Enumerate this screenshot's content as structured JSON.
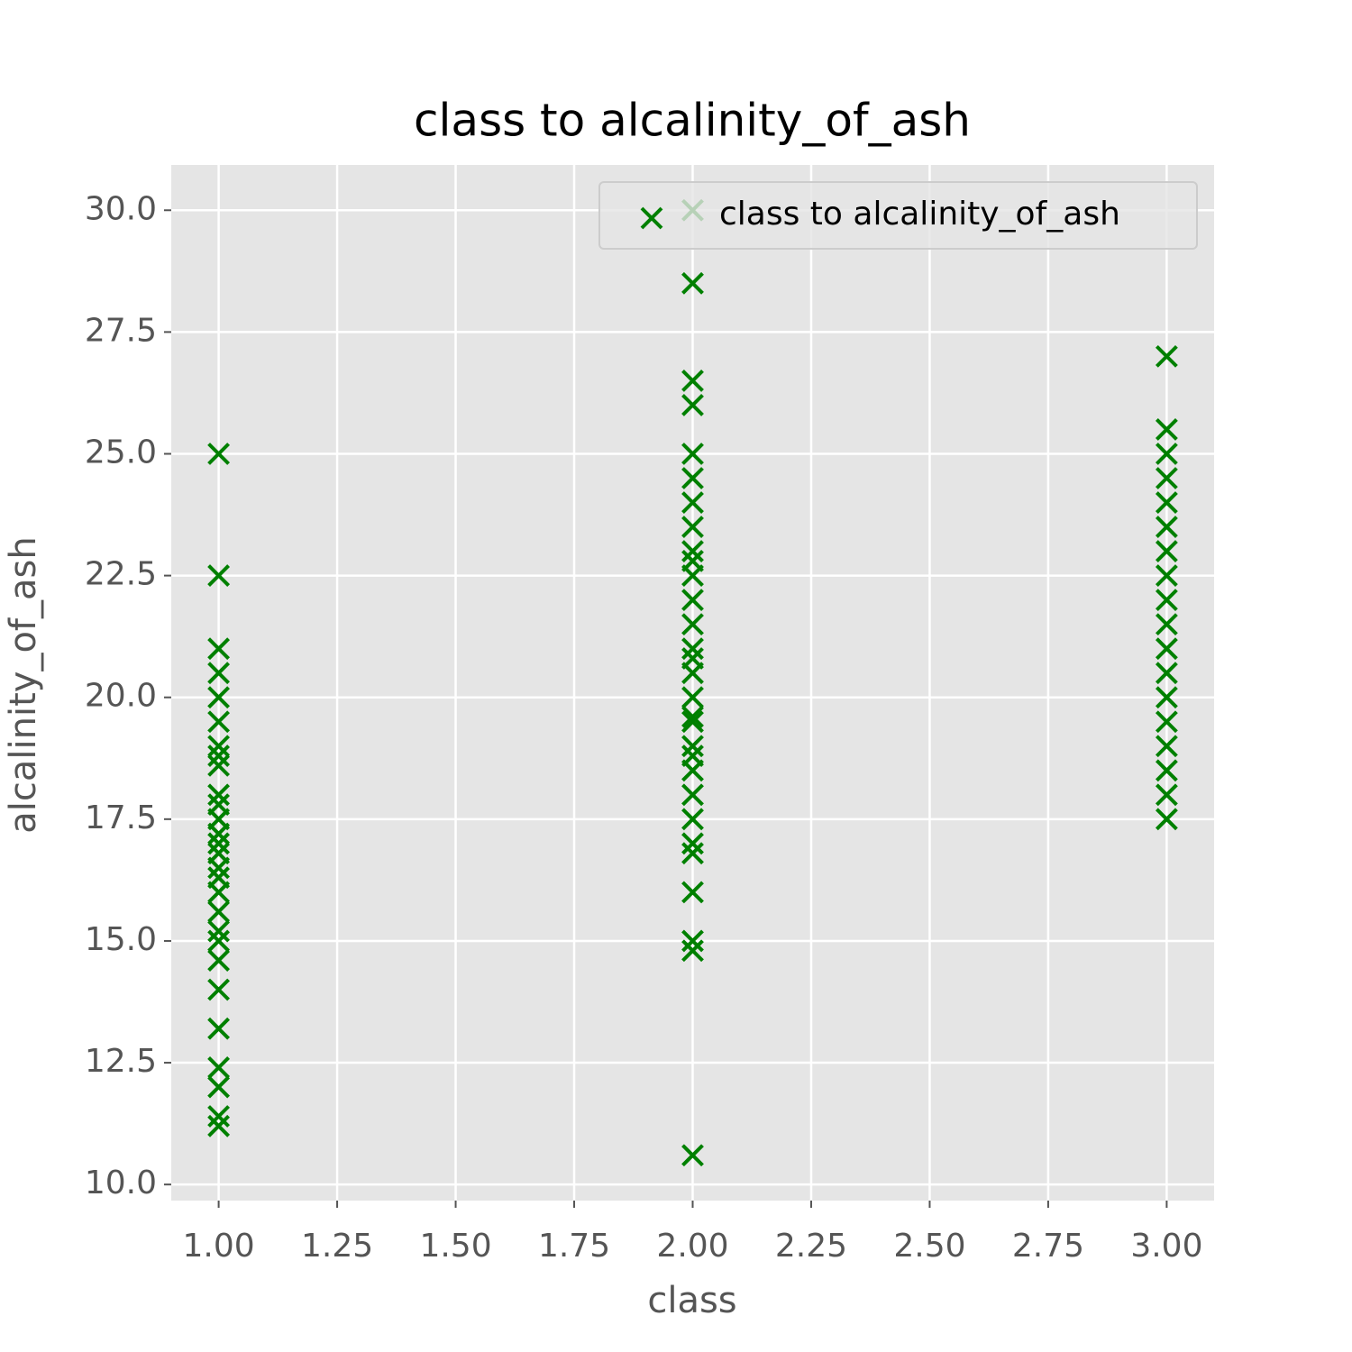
{
  "chart_data": {
    "type": "scatter",
    "title": "class to alcalinity_of_ash",
    "xlabel": "class",
    "ylabel": "alcalinity_of_ash",
    "x": [
      1,
      1,
      1,
      1,
      1,
      1,
      1,
      1,
      1,
      1,
      1,
      1,
      1,
      1,
      1,
      1,
      1,
      1,
      1,
      1,
      1,
      1,
      1,
      1,
      1,
      1,
      1,
      1,
      2,
      2,
      2,
      2,
      2,
      2,
      2,
      2,
      2,
      2,
      2,
      2,
      2,
      2,
      2,
      2,
      2,
      2,
      2,
      2,
      2,
      2,
      2,
      2,
      2,
      2,
      2,
      2,
      2,
      2,
      3,
      3,
      3,
      3,
      3,
      3,
      3,
      3,
      3,
      3,
      3,
      3,
      3,
      3,
      3,
      3,
      3,
      3
    ],
    "series": [
      {
        "name": "class to alcalinity_of_ash",
        "color": "#008000",
        "marker": "x",
        "values": [
          25,
          22.5,
          21,
          20.5,
          20,
          19.5,
          19,
          18.8,
          18.6,
          18,
          17.8,
          17.5,
          17.2,
          17,
          16.8,
          16.5,
          16.3,
          16,
          15.6,
          15.2,
          15,
          14.6,
          14,
          13.2,
          12.4,
          12,
          11.4,
          11.2,
          30,
          28.5,
          26.5,
          26,
          25,
          24.5,
          24,
          23.5,
          23,
          22.8,
          22.5,
          22,
          21.5,
          21,
          20.8,
          20.5,
          20,
          19.6,
          19.5,
          19,
          18.8,
          18.5,
          18,
          17.5,
          17,
          16.8,
          16,
          15,
          14.8,
          10.6,
          27,
          25.5,
          25,
          24.5,
          24,
          23.5,
          23,
          22.5,
          22,
          21.5,
          21,
          20.5,
          20,
          19.5,
          19,
          18.5,
          18,
          17.5
        ]
      }
    ],
    "xlim": [
      0.9,
      3.1
    ],
    "ylim": [
      9.67,
      30.93
    ],
    "xticks": [
      {
        "value": 1,
        "label": "1.00"
      },
      1.25,
      {
        "value": 1.5,
        "label": "1.50"
      },
      1.75,
      {
        "value": 2,
        "label": "2.00"
      },
      2.25,
      {
        "value": 2.5,
        "label": "2.50"
      },
      2.75,
      {
        "value": 3,
        "label": "3.00"
      }
    ],
    "yticks": [
      {
        "value": 10,
        "label": "10.0"
      },
      12.5,
      {
        "value": 15,
        "label": "15.0"
      },
      17.5,
      {
        "value": 20,
        "label": "20.0"
      },
      22.5,
      {
        "value": 25,
        "label": "25.0"
      },
      27.5,
      {
        "value": 30,
        "label": "30.0"
      }
    ],
    "grid": true,
    "legend": "upper right"
  }
}
